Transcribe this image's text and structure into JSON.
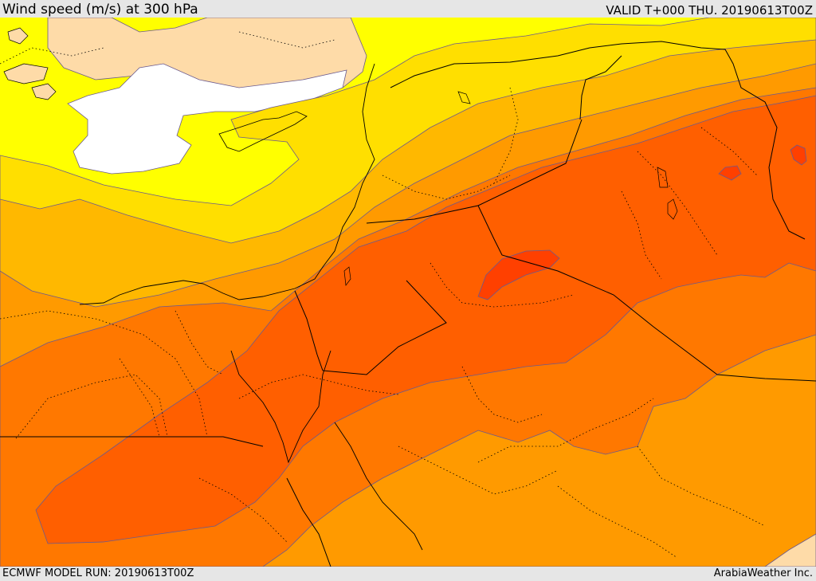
{
  "header": {
    "title": "Wind speed (m/s) at 300 hPa",
    "valid": "VALID T+000 THU. 20190613T00Z"
  },
  "footer": {
    "model_run": "ECMWF MODEL RUN: 20190613T00Z",
    "credit": "ArabiaWeather Inc."
  },
  "map": {
    "parameter": "wind speed",
    "level_hPa": 300,
    "units": "m/s",
    "region": "Eastern Mediterranean / Levant",
    "features": [
      "land-mask",
      "coastlines",
      "national-borders",
      "province-boundaries",
      "filled-contours"
    ],
    "colors": {
      "background_gray": "#e6e6e6",
      "land_tan": "#fedba8",
      "calm_white": "#ffffff",
      "band_1": "#ffff00",
      "band_2": "#ffdf00",
      "band_3": "#ffb800",
      "band_4": "#ff9a00",
      "band_5": "#ff7800",
      "band_6": "#ff5f00",
      "band_7": "#ff4000",
      "contour_line": "#6b5a8e",
      "border_line": "#000000"
    }
  }
}
